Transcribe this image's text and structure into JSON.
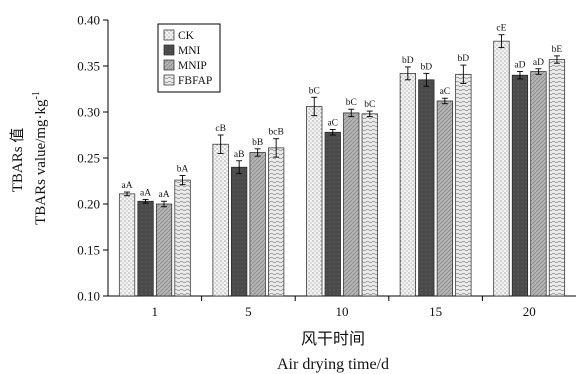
{
  "chart_data": {
    "type": "bar",
    "ylabel_cn": "TBARs 值",
    "ylabel_en": "TBARs value/mg·kg",
    "ylabel_sup": "-1",
    "xlabel_cn": "风干时间",
    "xlabel_en": "Air drying time/d",
    "ylim": [
      0.1,
      0.4
    ],
    "yticks": [
      "0.10",
      "0.15",
      "0.20",
      "0.25",
      "0.30",
      "0.35",
      "0.40"
    ],
    "categories": [
      "1",
      "5",
      "10",
      "15",
      "20"
    ],
    "series": [
      {
        "name": "CK",
        "fill": "dots",
        "values": [
          0.211,
          0.265,
          0.306,
          0.342,
          0.377
        ],
        "errors": [
          0.002,
          0.01,
          0.01,
          0.007,
          0.007
        ],
        "labels": [
          "aA",
          "cB",
          "bC",
          "bD",
          "cE"
        ]
      },
      {
        "name": "MNI",
        "fill": "dark",
        "values": [
          0.203,
          0.24,
          0.278,
          0.335,
          0.34
        ],
        "errors": [
          0.002,
          0.007,
          0.003,
          0.007,
          0.004
        ],
        "labels": [
          "aA",
          "aB",
          "aC",
          "bD",
          "aD"
        ]
      },
      {
        "name": "MNIP",
        "fill": "grey",
        "values": [
          0.2,
          0.256,
          0.299,
          0.312,
          0.344
        ],
        "errors": [
          0.003,
          0.004,
          0.004,
          0.003,
          0.003
        ],
        "labels": [
          "aA",
          "bB",
          "bC",
          "aC",
          "aD"
        ]
      },
      {
        "name": "FBFAP",
        "fill": "wave",
        "values": [
          0.226,
          0.261,
          0.298,
          0.341,
          0.357
        ],
        "errors": [
          0.005,
          0.01,
          0.003,
          0.01,
          0.004
        ],
        "labels": [
          "bA",
          "bcB",
          "bC",
          "bD",
          "bE"
        ]
      }
    ],
    "legend_position": "top-left",
    "grid": false
  }
}
